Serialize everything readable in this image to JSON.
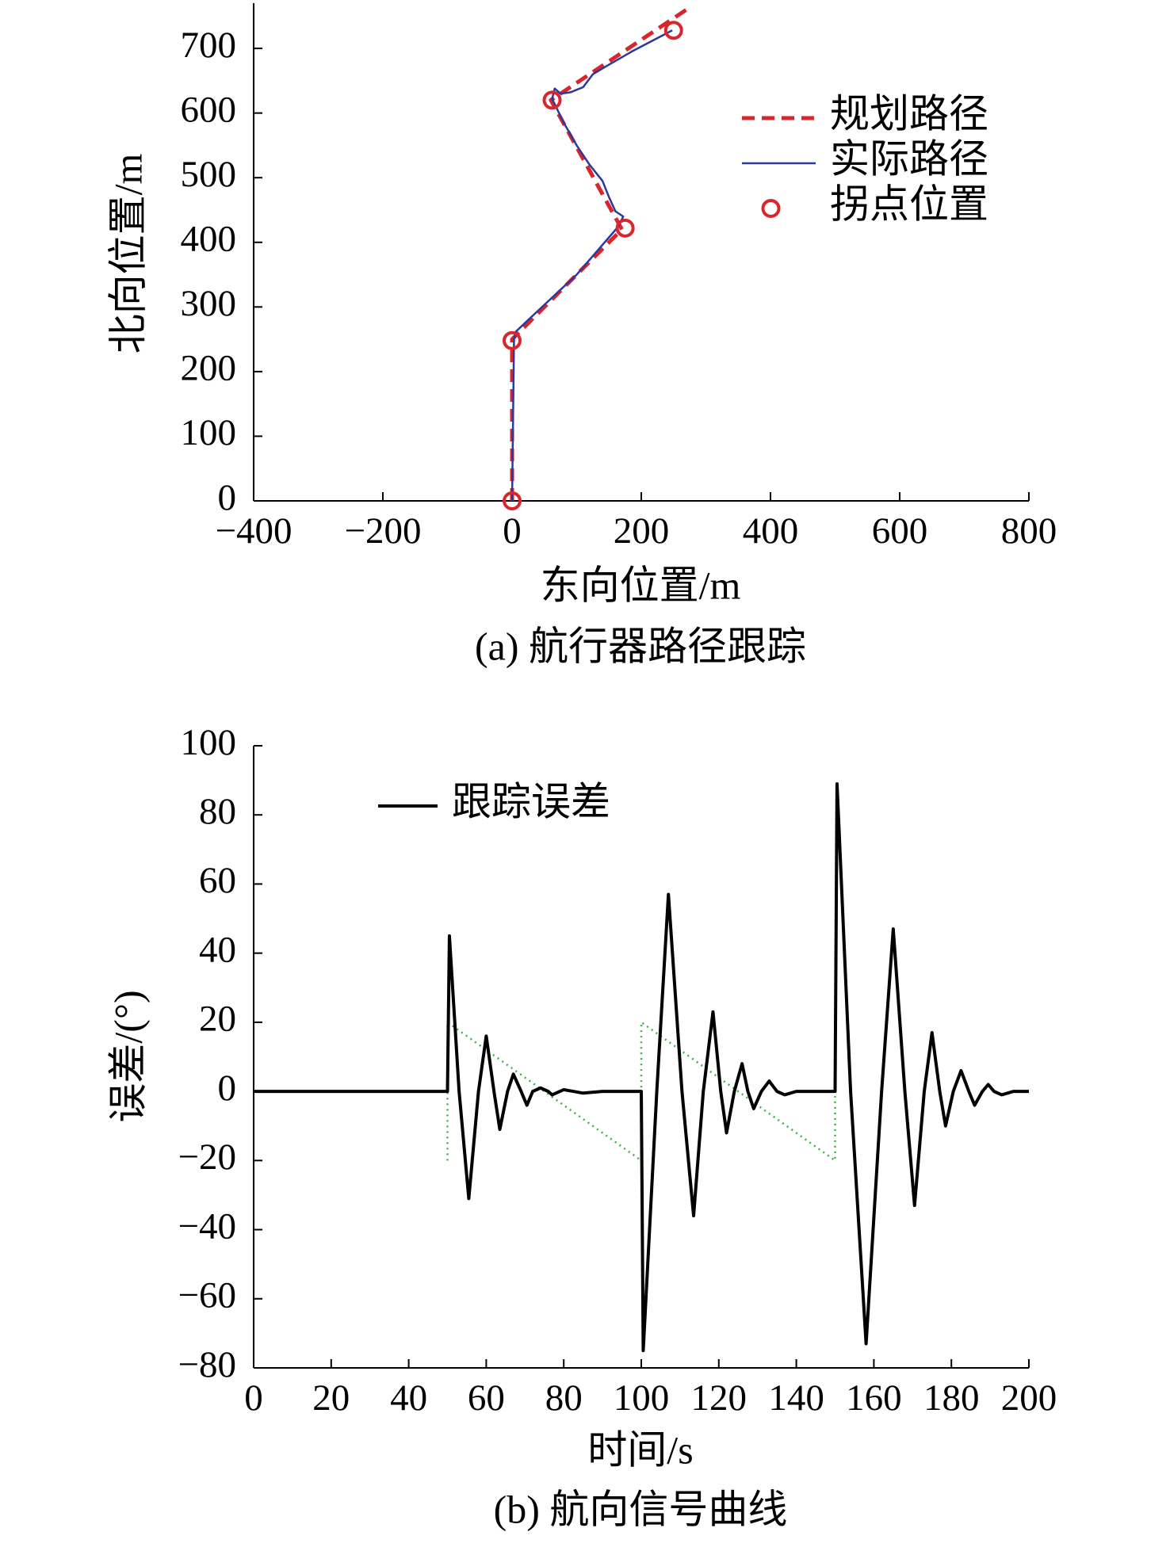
{
  "chart_data": [
    {
      "type": "line",
      "caption": "(a) 航行器路径跟踪",
      "xlabel": "东向位置/m",
      "ylabel": "北向位置/m",
      "xlim": [
        -400,
        800
      ],
      "ylim": [
        0,
        770
      ],
      "xticks": [
        {
          "value": -400,
          "label": "−400"
        },
        {
          "value": -200,
          "label": "−200"
        },
        0,
        200,
        400,
        600,
        800
      ],
      "yticks": [
        0,
        100,
        200,
        300,
        400,
        500,
        600,
        700
      ],
      "legend": "upper right",
      "series": [
        {
          "name": "规划路径",
          "color": "#d9262c",
          "style": "dashed",
          "x": [
            0,
            0,
            170,
            60,
            270
          ],
          "values": [
            0,
            250,
            420,
            620,
            760
          ]
        },
        {
          "name": "实际路径",
          "color": "#2b3a9a",
          "style": "solid",
          "x": [
            0,
            3,
            6,
            25,
            100,
            165,
            172,
            160,
            150,
            140,
            120,
            100,
            80,
            62,
            66,
            75,
            90,
            110,
            125,
            145,
            185,
            248
          ],
          "values": [
            0,
            250,
            262,
            280,
            350,
            425,
            440,
            448,
            470,
            495,
            520,
            550,
            585,
            622,
            638,
            630,
            632,
            640,
            660,
            672,
            695,
            728
          ]
        },
        {
          "name": "拐点位置",
          "color": "#d9262c",
          "style": "marker",
          "x": [
            0,
            0,
            175,
            62,
            250
          ],
          "values": [
            0,
            248,
            422,
            620,
            728
          ]
        }
      ]
    },
    {
      "type": "line",
      "caption": "(b) 航向信号曲线",
      "xlabel": "时间/s",
      "ylabel": "误差/(°)",
      "xlim": [
        0,
        200
      ],
      "ylim": [
        -80,
        100
      ],
      "xticks": [
        0,
        20,
        40,
        60,
        80,
        100,
        120,
        140,
        160,
        180,
        200
      ],
      "yticks": [
        {
          "value": -80,
          "label": "−80"
        },
        {
          "value": -60,
          "label": "−60"
        },
        {
          "value": -40,
          "label": "−40"
        },
        {
          "value": -20,
          "label": "−20"
        },
        0,
        20,
        40,
        60,
        80,
        100
      ],
      "legend": "upper left",
      "series": [
        {
          "color": "#3cb043",
          "style": "dotted",
          "x": [
            50,
            50,
            100,
            100,
            150,
            150
          ],
          "values": [
            -20,
            20,
            -20,
            20,
            -20,
            20
          ]
        },
        {
          "name": "跟踪误差",
          "color": "#000000",
          "style": "solid",
          "x": [
            0,
            50,
            50.5,
            53,
            55.5,
            58,
            60,
            62,
            63.5,
            65.5,
            67,
            69,
            70.5,
            72,
            74,
            76,
            77,
            80,
            85,
            90,
            95,
            100,
            100.5,
            104,
            107,
            110.5,
            113.5,
            116,
            118.5,
            120.5,
            122,
            124,
            126,
            127.5,
            129,
            131,
            133,
            135,
            137,
            140,
            150,
            150.5,
            154,
            158,
            162,
            165,
            168,
            170.5,
            173,
            175,
            177,
            178.5,
            180.5,
            182.5,
            184.5,
            186,
            188,
            189.5,
            191,
            193,
            196,
            200
          ],
          "values": [
            0,
            0,
            45,
            0,
            -31,
            0,
            16,
            0,
            -11,
            0,
            5,
            0,
            -4,
            0,
            1,
            0,
            -1,
            0.5,
            -0.5,
            0,
            0,
            0,
            -75,
            0,
            57,
            0,
            -36,
            0,
            23,
            0,
            -12,
            0,
            8,
            0,
            -5,
            0,
            3,
            0,
            -1,
            0,
            0,
            89,
            0,
            -73,
            0,
            47,
            0,
            -33,
            0,
            17,
            0,
            -10,
            0,
            6,
            0,
            -4,
            0,
            2,
            0,
            -1,
            0,
            0
          ]
        }
      ]
    }
  ]
}
